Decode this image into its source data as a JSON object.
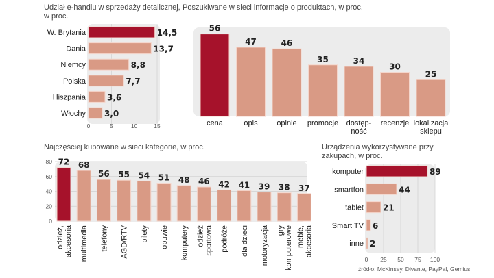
{
  "colors": {
    "highlight": "#a6122b",
    "bar": "#d99a85",
    "panel": "#ececec",
    "grid": "#d0d0d0"
  },
  "chart_data": [
    {
      "type": "bar",
      "orientation": "horizontal",
      "title": [
        "Udział e-handlu w sprzedaży detalicznej,",
        "w proc."
      ],
      "categories": [
        "W. Brytania",
        "Dania",
        "Niemcy",
        "Polska",
        "Hiszpania",
        "Włochy"
      ],
      "values": [
        14.5,
        13.7,
        8.8,
        7.7,
        3.6,
        3.0
      ],
      "value_labels": [
        "14,5",
        "13,7",
        "8,8",
        "7,7",
        "3,6",
        "3,0"
      ],
      "xlim": [
        0,
        15
      ],
      "ticks": [
        0,
        5,
        10,
        15
      ],
      "highlight_index": 0,
      "grid": true
    },
    {
      "type": "bar",
      "orientation": "vertical",
      "title": [
        "Poszukiwane w sieci informacje o produktach, w proc."
      ],
      "categories": [
        [
          "cena"
        ],
        [
          "opis"
        ],
        [
          "opinie"
        ],
        [
          "promocje"
        ],
        [
          "dostęp-",
          "ność"
        ],
        [
          "recenzje"
        ],
        [
          "lokalizacja",
          "sklepu"
        ]
      ],
      "values": [
        56,
        47,
        46,
        35,
        34,
        30,
        25
      ],
      "value_labels": [
        "56",
        "47",
        "46",
        "35",
        "34",
        "30",
        "25"
      ],
      "ylim": [
        0,
        60
      ],
      "highlight_index": 0,
      "grid": false
    },
    {
      "type": "bar",
      "orientation": "vertical",
      "title": [
        "Najczęściej kupowane w sieci kategorie, w proc."
      ],
      "categories": [
        [
          "odzież,",
          "akcesoria"
        ],
        [
          "multimedia"
        ],
        [
          "telefony"
        ],
        [
          "AGD/RTV"
        ],
        [
          "bilety"
        ],
        [
          "obuwie"
        ],
        [
          "komputery"
        ],
        [
          "odzież",
          "sportowa"
        ],
        [
          "podróże"
        ],
        [
          "dla dzieci"
        ],
        [
          "motoryzacja"
        ],
        [
          "gry",
          "komputerowe"
        ],
        [
          "meble,",
          "akcesoria"
        ]
      ],
      "values": [
        72,
        68,
        56,
        55,
        54,
        51,
        48,
        46,
        42,
        41,
        39,
        38,
        37
      ],
      "value_labels": [
        "72",
        "68",
        "56",
        "55",
        "54",
        "51",
        "48",
        "46",
        "42",
        "41",
        "39",
        "38",
        "37"
      ],
      "ylim": [
        0,
        80
      ],
      "ticks": [
        0,
        20,
        40,
        60,
        80
      ],
      "highlight_index": 0,
      "grid": true
    },
    {
      "type": "bar",
      "orientation": "horizontal",
      "title": [
        "Urządzenia wykorzystywane przy",
        "zakupach, w proc."
      ],
      "categories": [
        "komputer",
        "smartfon",
        "tablet",
        "Smart TV",
        "inne"
      ],
      "values": [
        89,
        44,
        21,
        6,
        2
      ],
      "value_labels": [
        "89",
        "44",
        "21",
        "6",
        "2"
      ],
      "xlim": [
        0,
        100
      ],
      "ticks": [
        0,
        25,
        50,
        75,
        100
      ],
      "highlight_index": 0,
      "grid": true
    }
  ],
  "source": "źródło: McKinsey, Divante, PayPal, Gemius"
}
